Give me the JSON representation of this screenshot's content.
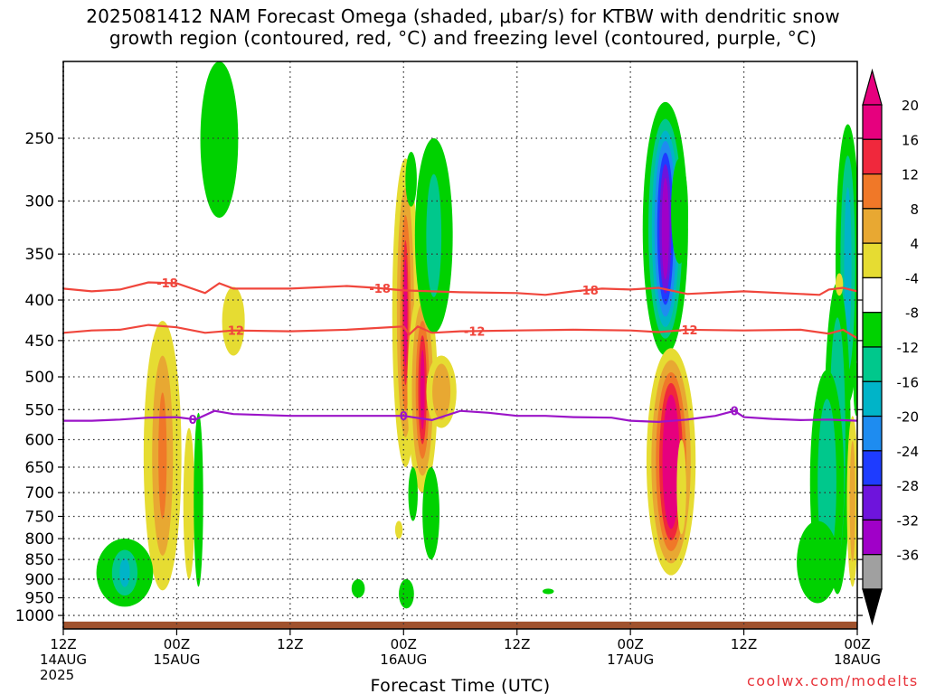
{
  "title": {
    "line1": "2025081412 NAM Forecast Omega (shaded, μbar/s) for KTBW with dendritic snow",
    "line2": "growth region (contoured, red, °C) and freezing level (contoured, purple, °C)"
  },
  "credit": "coolwx.com/modelts",
  "chart_data": {
    "type": "heatmap",
    "title": "2025081412 NAM Forecast Omega (shaded, μbar/s) for KTBW with dendritic snow growth region (contoured, red, °C) and freezing level (contoured, purple, °C)",
    "xlabel": "Forecast Time (UTC)",
    "ylabel": "",
    "x_ticks": [
      {
        "h": 0,
        "lines": [
          "12Z",
          "14AUG",
          "2025"
        ]
      },
      {
        "h": 12,
        "lines": [
          "00Z",
          "15AUG"
        ]
      },
      {
        "h": 24,
        "lines": [
          "12Z"
        ]
      },
      {
        "h": 36,
        "lines": [
          "00Z",
          "16AUG"
        ]
      },
      {
        "h": 48,
        "lines": [
          "12Z"
        ]
      },
      {
        "h": 60,
        "lines": [
          "00Z",
          "17AUG"
        ]
      },
      {
        "h": 72,
        "lines": [
          "12Z"
        ]
      },
      {
        "h": 84,
        "lines": [
          "00Z",
          "18AUG"
        ]
      }
    ],
    "x_range_hours": [
      0,
      84
    ],
    "y_ticks": [
      250,
      300,
      350,
      400,
      450,
      500,
      550,
      600,
      650,
      700,
      750,
      800,
      850,
      900,
      950,
      1000
    ],
    "y_range_hPa": [
      200,
      1040
    ],
    "y_scale": "log",
    "grid": true,
    "colorbar": {
      "labels": [
        "20",
        "16",
        "12",
        "8",
        "4",
        "-4",
        "-8",
        "-12",
        "-16",
        "-20",
        "-24",
        "-28",
        "-32",
        "-36"
      ],
      "bands": [
        {
          "from": 20,
          "to": 24,
          "color": "#e6007e"
        },
        {
          "from": 16,
          "to": 20,
          "color": "#f0283c"
        },
        {
          "from": 12,
          "to": 16,
          "color": "#f07828"
        },
        {
          "from": 8,
          "to": 12,
          "color": "#e8a832"
        },
        {
          "from": 4,
          "to": 8,
          "color": "#e6dc32"
        },
        {
          "from": -4,
          "to": 4,
          "color": "#ffffff"
        },
        {
          "from": -8,
          "to": -4,
          "color": "#00d200"
        },
        {
          "from": -12,
          "to": -8,
          "color": "#00c88c"
        },
        {
          "from": -16,
          "to": -12,
          "color": "#00b4c8"
        },
        {
          "from": -20,
          "to": -16,
          "color": "#1e8cf0"
        },
        {
          "from": -24,
          "to": -20,
          "color": "#1e3cff"
        },
        {
          "from": -28,
          "to": -24,
          "color": "#6e14dc"
        },
        {
          "from": -32,
          "to": -28,
          "color": "#a000c8"
        },
        {
          "from": -36,
          "to": -32,
          "color": "#a0a0a0"
        }
      ],
      "top_overflow_color": "#e6007e",
      "bottom_overflow_color": "#000000"
    },
    "contours": [
      {
        "name": "dendritic snow growth region",
        "level_label": "-18",
        "color": "#f0463c",
        "label_hours": [
          11,
          33.5,
          55.5
        ],
        "points": [
          [
            0,
            387
          ],
          [
            3,
            390
          ],
          [
            6,
            388
          ],
          [
            9,
            380
          ],
          [
            12,
            381
          ],
          [
            15,
            392
          ],
          [
            16.5,
            381
          ],
          [
            18,
            387
          ],
          [
            24,
            387
          ],
          [
            30,
            384
          ],
          [
            33,
            386
          ],
          [
            36,
            389
          ],
          [
            42,
            391
          ],
          [
            48,
            392
          ],
          [
            51,
            394
          ],
          [
            54,
            390
          ],
          [
            57,
            387
          ],
          [
            60,
            388
          ],
          [
            63,
            386
          ],
          [
            66,
            393
          ],
          [
            72,
            390
          ],
          [
            78,
            393
          ],
          [
            80,
            394
          ],
          [
            81,
            388
          ],
          [
            82.5,
            386
          ],
          [
            84,
            390
          ]
        ]
      },
      {
        "name": "dendritic snow growth region",
        "level_label": "-12",
        "color": "#f0463c",
        "label_hours": [
          18,
          43.5,
          66
        ],
        "points": [
          [
            0,
            440
          ],
          [
            3,
            437
          ],
          [
            6,
            436
          ],
          [
            9,
            430
          ],
          [
            12,
            433
          ],
          [
            15,
            440
          ],
          [
            18,
            437
          ],
          [
            24,
            438
          ],
          [
            30,
            436
          ],
          [
            36,
            432
          ],
          [
            36.6,
            442
          ],
          [
            37.5,
            432
          ],
          [
            39,
            440
          ],
          [
            42,
            438
          ],
          [
            48,
            437
          ],
          [
            54,
            436
          ],
          [
            60,
            437
          ],
          [
            63,
            439
          ],
          [
            66,
            436
          ],
          [
            72,
            437
          ],
          [
            78,
            436
          ],
          [
            81,
            441
          ],
          [
            82.5,
            436
          ],
          [
            84,
            447
          ]
        ]
      },
      {
        "name": "freezing level",
        "level_label": "0",
        "color": "#9b14c8",
        "label_hours": [
          13.7,
          36,
          71
        ],
        "points": [
          [
            0,
            568
          ],
          [
            3,
            568
          ],
          [
            6,
            566
          ],
          [
            9,
            563
          ],
          [
            12,
            562
          ],
          [
            14,
            566
          ],
          [
            16,
            552
          ],
          [
            18,
            557
          ],
          [
            24,
            560
          ],
          [
            30,
            560
          ],
          [
            36,
            560
          ],
          [
            39,
            567
          ],
          [
            42,
            552
          ],
          [
            45,
            555
          ],
          [
            48,
            560
          ],
          [
            51,
            560
          ],
          [
            54,
            562
          ],
          [
            58,
            563
          ],
          [
            60,
            568
          ],
          [
            63,
            570
          ],
          [
            66,
            566
          ],
          [
            69,
            560
          ],
          [
            71,
            552
          ],
          [
            72,
            562
          ],
          [
            75,
            565
          ],
          [
            78,
            567
          ],
          [
            81,
            566
          ],
          [
            84,
            568
          ]
        ]
      }
    ],
    "omega_features": [
      {
        "h": 16.5,
        "p1": 200,
        "p2": 315,
        "w": 2.0,
        "cls": [
          [
            -6,
            1
          ]
        ]
      },
      {
        "h": 18,
        "p1": 385,
        "p2": 470,
        "w": 1.2,
        "cls": [
          [
            6,
            1
          ]
        ]
      },
      {
        "h": 10.5,
        "p1": 425,
        "p2": 930,
        "w": 2.0,
        "cls": [
          [
            6,
            1
          ],
          [
            10,
            0.55
          ],
          [
            14,
            0.22
          ]
        ]
      },
      {
        "h": 13.3,
        "p1": 580,
        "p2": 900,
        "w": 0.6,
        "cls": [
          [
            6,
            1
          ]
        ]
      },
      {
        "h": 14.3,
        "p1": 555,
        "p2": 920,
        "w": 0.5,
        "cls": [
          [
            -6,
            1
          ]
        ]
      },
      {
        "h": 6.5,
        "p1": 800,
        "p2": 975,
        "w": 3.0,
        "cls": [
          [
            -6,
            1
          ],
          [
            -10,
            0.45
          ],
          [
            -14,
            0.18
          ]
        ]
      },
      {
        "h": 31.2,
        "p1": 900,
        "p2": 950,
        "w": 0.7,
        "cls": [
          [
            -6,
            1
          ]
        ]
      },
      {
        "h": 36.2,
        "p1": 265,
        "p2": 650,
        "w": 1.4,
        "cls": [
          [
            6,
            1
          ],
          [
            10,
            0.65
          ],
          [
            14,
            0.4
          ],
          [
            18,
            0.22
          ],
          [
            22,
            0.12
          ]
        ]
      },
      {
        "h": 38,
        "p1": 385,
        "p2": 700,
        "w": 1.6,
        "cls": [
          [
            6,
            1
          ],
          [
            10,
            0.7
          ],
          [
            14,
            0.45
          ],
          [
            18,
            0.28
          ],
          [
            22,
            0.15
          ]
        ]
      },
      {
        "h": 40,
        "p1": 470,
        "p2": 580,
        "w": 1.6,
        "cls": [
          [
            6,
            1
          ],
          [
            10,
            0.6
          ]
        ]
      },
      {
        "h": 36.8,
        "p1": 260,
        "p2": 305,
        "w": 0.6,
        "cls": [
          [
            -6,
            1
          ]
        ]
      },
      {
        "h": 39.2,
        "p1": 250,
        "p2": 440,
        "w": 2.0,
        "cls": [
          [
            -6,
            1
          ],
          [
            -10,
            0.4
          ]
        ]
      },
      {
        "h": 37,
        "p1": 650,
        "p2": 760,
        "w": 0.5,
        "cls": [
          [
            -6,
            1
          ]
        ]
      },
      {
        "h": 36.3,
        "p1": 900,
        "p2": 980,
        "w": 0.8,
        "cls": [
          [
            -6,
            1
          ]
        ]
      },
      {
        "h": 38.9,
        "p1": 650,
        "p2": 850,
        "w": 0.9,
        "cls": [
          [
            -6,
            1
          ]
        ]
      },
      {
        "h": 35.5,
        "p1": 760,
        "p2": 800,
        "w": 0.4,
        "cls": [
          [
            6,
            1
          ]
        ]
      },
      {
        "h": 51.3,
        "p1": 925,
        "p2": 940,
        "w": 0.6,
        "cls": [
          [
            -6,
            1
          ]
        ]
      },
      {
        "h": 63.7,
        "p1": 225,
        "p2": 470,
        "w": 2.4,
        "cls": [
          [
            -6,
            1
          ],
          [
            -10,
            0.75
          ],
          [
            -14,
            0.6
          ],
          [
            -18,
            0.48
          ],
          [
            -22,
            0.36
          ],
          [
            -26,
            0.26
          ],
          [
            -30,
            0.16
          ]
        ]
      },
      {
        "h": 65.2,
        "p1": 265,
        "p2": 360,
        "w": 0.9,
        "cls": [
          [
            -6,
            1
          ]
        ]
      },
      {
        "h": 64.3,
        "p1": 460,
        "p2": 890,
        "w": 2.6,
        "cls": [
          [
            6,
            1
          ],
          [
            10,
            0.8
          ],
          [
            14,
            0.62
          ],
          [
            18,
            0.48
          ],
          [
            22,
            0.35
          ]
        ]
      },
      {
        "h": 65.4,
        "p1": 600,
        "p2": 790,
        "w": 0.5,
        "cls": [
          [
            6,
            1
          ]
        ]
      },
      {
        "h": 83,
        "p1": 240,
        "p2": 540,
        "w": 1.3,
        "cls": [
          [
            -6,
            1
          ],
          [
            -10,
            0.6
          ],
          [
            -14,
            0.3
          ]
        ]
      },
      {
        "h": 81.9,
        "p1": 380,
        "p2": 940,
        "w": 1.4,
        "cls": [
          [
            -6,
            1
          ],
          [
            -10,
            0.6
          ]
        ]
      },
      {
        "h": 80.8,
        "p1": 490,
        "p2": 940,
        "w": 1.8,
        "cls": [
          [
            -6,
            1
          ],
          [
            -10,
            0.55
          ]
        ]
      },
      {
        "h": 79.8,
        "p1": 760,
        "p2": 965,
        "w": 2.2,
        "cls": [
          [
            -6,
            1
          ]
        ]
      },
      {
        "h": 83.5,
        "p1": 560,
        "p2": 920,
        "w": 0.6,
        "cls": [
          [
            6,
            1
          ],
          [
            10,
            0.5
          ]
        ]
      },
      {
        "h": 82.1,
        "p1": 370,
        "p2": 395,
        "w": 0.4,
        "cls": [
          [
            6,
            1
          ]
        ]
      },
      {
        "h": 83.9,
        "p1": 480,
        "p2": 560,
        "w": 0.3,
        "cls": [
          [
            -6,
            1
          ]
        ]
      }
    ],
    "surface": {
      "color": "#a0522d",
      "p_top": 1018
    }
  }
}
